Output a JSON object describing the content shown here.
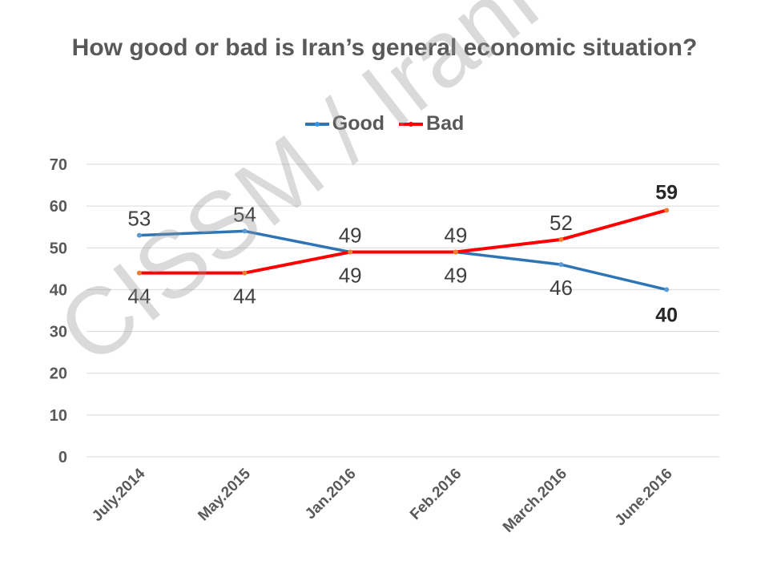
{
  "chart_data": {
    "type": "line",
    "title": "How good or bad is Iran’s general economic situation?",
    "categories": [
      "July.2014",
      "May.2015",
      "Jan.2016",
      "Feb.2016",
      "March.2016",
      "June.2016"
    ],
    "series": [
      {
        "name": "Good",
        "color": "#2e75b6",
        "values": [
          53,
          54,
          49,
          49,
          46,
          40
        ],
        "label_position": [
          "above",
          "above",
          "below",
          "below",
          "below",
          "below"
        ]
      },
      {
        "name": "Bad",
        "color": "#ff0000",
        "values": [
          44,
          44,
          49,
          49,
          52,
          59
        ],
        "label_position": [
          "below",
          "below",
          "above",
          "above",
          "above",
          "above"
        ]
      }
    ],
    "bold_labels_at_last_point": true,
    "ylim": [
      0,
      70
    ],
    "yticks": [
      0,
      10,
      20,
      30,
      40,
      50,
      60,
      70
    ],
    "grid": true,
    "legend_position": "top"
  },
  "watermark": "CISSM / IranPoll.com"
}
